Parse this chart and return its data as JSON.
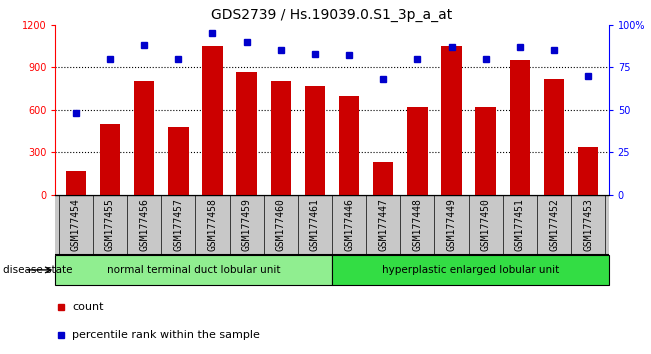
{
  "title": "GDS2739 / Hs.19039.0.S1_3p_a_at",
  "samples": [
    "GSM177454",
    "GSM177455",
    "GSM177456",
    "GSM177457",
    "GSM177458",
    "GSM177459",
    "GSM177460",
    "GSM177461",
    "GSM177446",
    "GSM177447",
    "GSM177448",
    "GSM177449",
    "GSM177450",
    "GSM177451",
    "GSM177452",
    "GSM177453"
  ],
  "counts": [
    170,
    500,
    800,
    480,
    1050,
    870,
    800,
    770,
    700,
    230,
    620,
    1050,
    620,
    950,
    820,
    340
  ],
  "percentiles": [
    48,
    80,
    88,
    80,
    95,
    90,
    85,
    83,
    82,
    68,
    80,
    87,
    80,
    87,
    85,
    70
  ],
  "group1_label": "normal terminal duct lobular unit",
  "group2_label": "hyperplastic enlarged lobular unit",
  "group1_count": 8,
  "group2_count": 8,
  "ylim_left": [
    0,
    1200
  ],
  "ylim_right": [
    0,
    100
  ],
  "yticks_left": [
    0,
    300,
    600,
    900,
    1200
  ],
  "yticks_right": [
    0,
    25,
    50,
    75,
    100
  ],
  "bar_color": "#cc0000",
  "dot_color": "#0000cc",
  "group1_color": "#90ee90",
  "group2_color": "#33dd44",
  "xtick_bg_color": "#c8c8c8",
  "title_fontsize": 10,
  "tick_fontsize": 7,
  "label_fontsize": 7.5,
  "legend_fontsize": 8
}
